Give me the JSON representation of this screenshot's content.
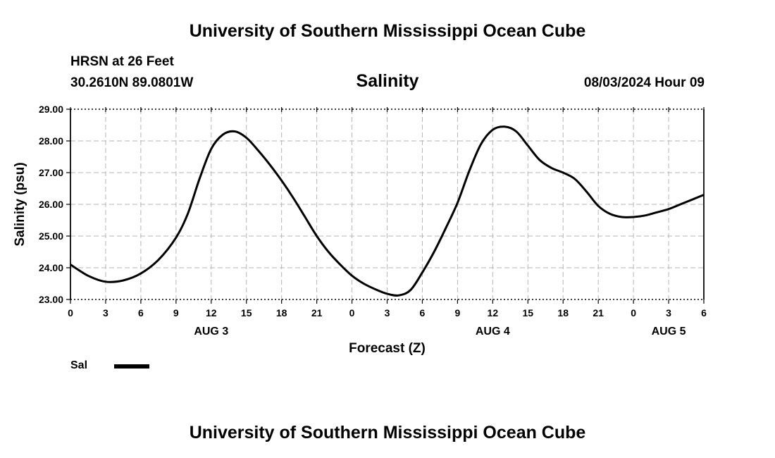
{
  "header": {
    "title": "University of Southern Mississippi Ocean Cube",
    "station": "HRSN at 26 Feet",
    "coords": "30.2610N  89.0801W",
    "chart_title": "Salinity",
    "timestamp": "08/03/2024 Hour 09"
  },
  "footer": {
    "title": "University of Southern Mississippi Ocean Cube"
  },
  "legend": {
    "label": "Sal",
    "color": "#000000"
  },
  "chart_data": {
    "type": "line",
    "title": "Salinity",
    "xlabel": "Forecast (Z)",
    "ylabel": "Salinity (psu)",
    "ylim": [
      23.0,
      29.0
    ],
    "xlim": [
      0,
      54
    ],
    "yticks": [
      "23.00",
      "24.00",
      "25.00",
      "26.00",
      "27.00",
      "28.00",
      "29.00"
    ],
    "xtick_labels": [
      "0",
      "3",
      "6",
      "9",
      "12",
      "15",
      "18",
      "21",
      "0",
      "3",
      "6",
      "9",
      "12",
      "15",
      "18",
      "21",
      "0",
      "3",
      "6"
    ],
    "date_labels": [
      {
        "label": "AUG 3",
        "hour": 12
      },
      {
        "label": "AUG 4",
        "hour": 36
      },
      {
        "label": "AUG 5",
        "hour": 51
      }
    ],
    "grid": true,
    "series": [
      {
        "name": "Sal",
        "x": [
          0,
          1.5,
          3,
          4.5,
          6,
          7.5,
          9,
          10,
          11,
          12,
          13,
          14,
          15,
          16,
          17,
          18,
          19,
          20,
          21,
          22,
          23,
          24,
          25,
          26,
          27,
          28,
          29,
          30,
          31,
          32,
          33,
          34,
          35,
          36,
          37,
          38,
          39,
          40,
          41,
          42,
          43,
          44,
          45,
          46,
          47,
          48,
          49,
          50,
          51,
          52,
          53,
          54
        ],
        "values": [
          24.1,
          23.75,
          23.56,
          23.6,
          23.82,
          24.25,
          24.95,
          25.7,
          26.8,
          27.75,
          28.2,
          28.3,
          28.1,
          27.7,
          27.25,
          26.75,
          26.2,
          25.6,
          25.0,
          24.5,
          24.1,
          23.75,
          23.5,
          23.32,
          23.18,
          23.13,
          23.3,
          23.85,
          24.5,
          25.25,
          26.05,
          27.05,
          27.9,
          28.35,
          28.45,
          28.3,
          27.85,
          27.4,
          27.15,
          27.0,
          26.8,
          26.4,
          25.95,
          25.7,
          25.6,
          25.6,
          25.65,
          25.75,
          25.85,
          26.0,
          26.15,
          26.3
        ]
      }
    ]
  }
}
